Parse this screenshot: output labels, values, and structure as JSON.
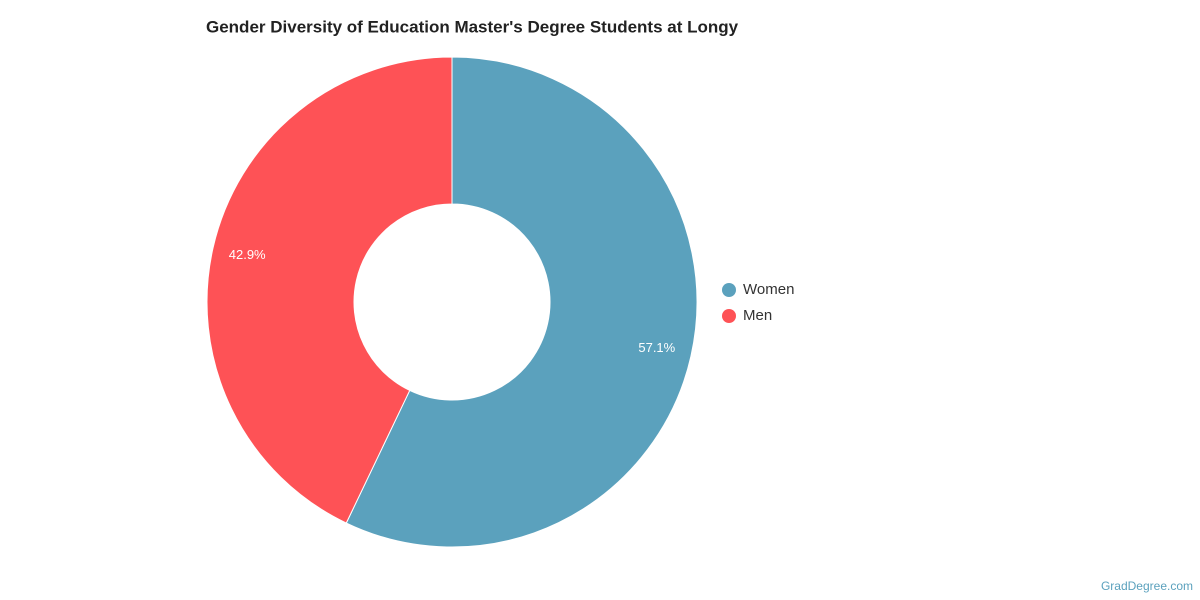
{
  "chart_data": {
    "type": "donut",
    "title": "Gender Diversity of Education Master's Degree Students at Longy",
    "categories": [
      "Women",
      "Men"
    ],
    "values": [
      57.1,
      42.9
    ],
    "value_labels": [
      "57.1%",
      "42.9%"
    ],
    "colors": [
      "#5ba1bd",
      "#fe5256"
    ],
    "legend": "right",
    "credit": "GradDegree.com"
  }
}
